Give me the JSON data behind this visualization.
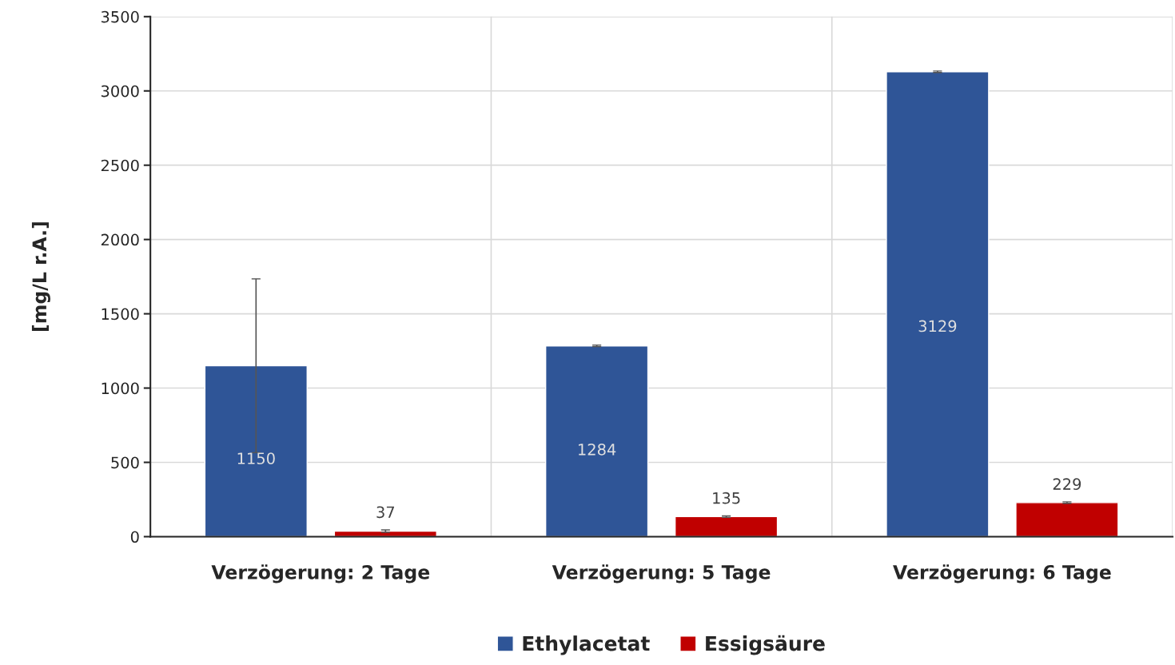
{
  "chart_data": {
    "type": "bar",
    "ylabel": "[mg/L r.A.]",
    "categories": [
      "Verzögerung: 2 Tage",
      "Verzögerung: 5 Tage",
      "Verzögerung: 6 Tage"
    ],
    "series": [
      {
        "name": "Ethylacetat",
        "color": "#2f5597",
        "values": [
          1150,
          1284,
          3129
        ],
        "errors": [
          585,
          5,
          5
        ]
      },
      {
        "name": "Essigsäure",
        "color": "#c00000",
        "values": [
          37,
          135,
          229
        ],
        "errors": [
          8,
          5,
          5
        ]
      }
    ],
    "ylim": [
      0,
      3500
    ],
    "yticks": [
      0,
      500,
      1000,
      1500,
      2000,
      2500,
      3000,
      3500
    ],
    "grid": true,
    "legend": "bottom",
    "data_labels": true
  }
}
